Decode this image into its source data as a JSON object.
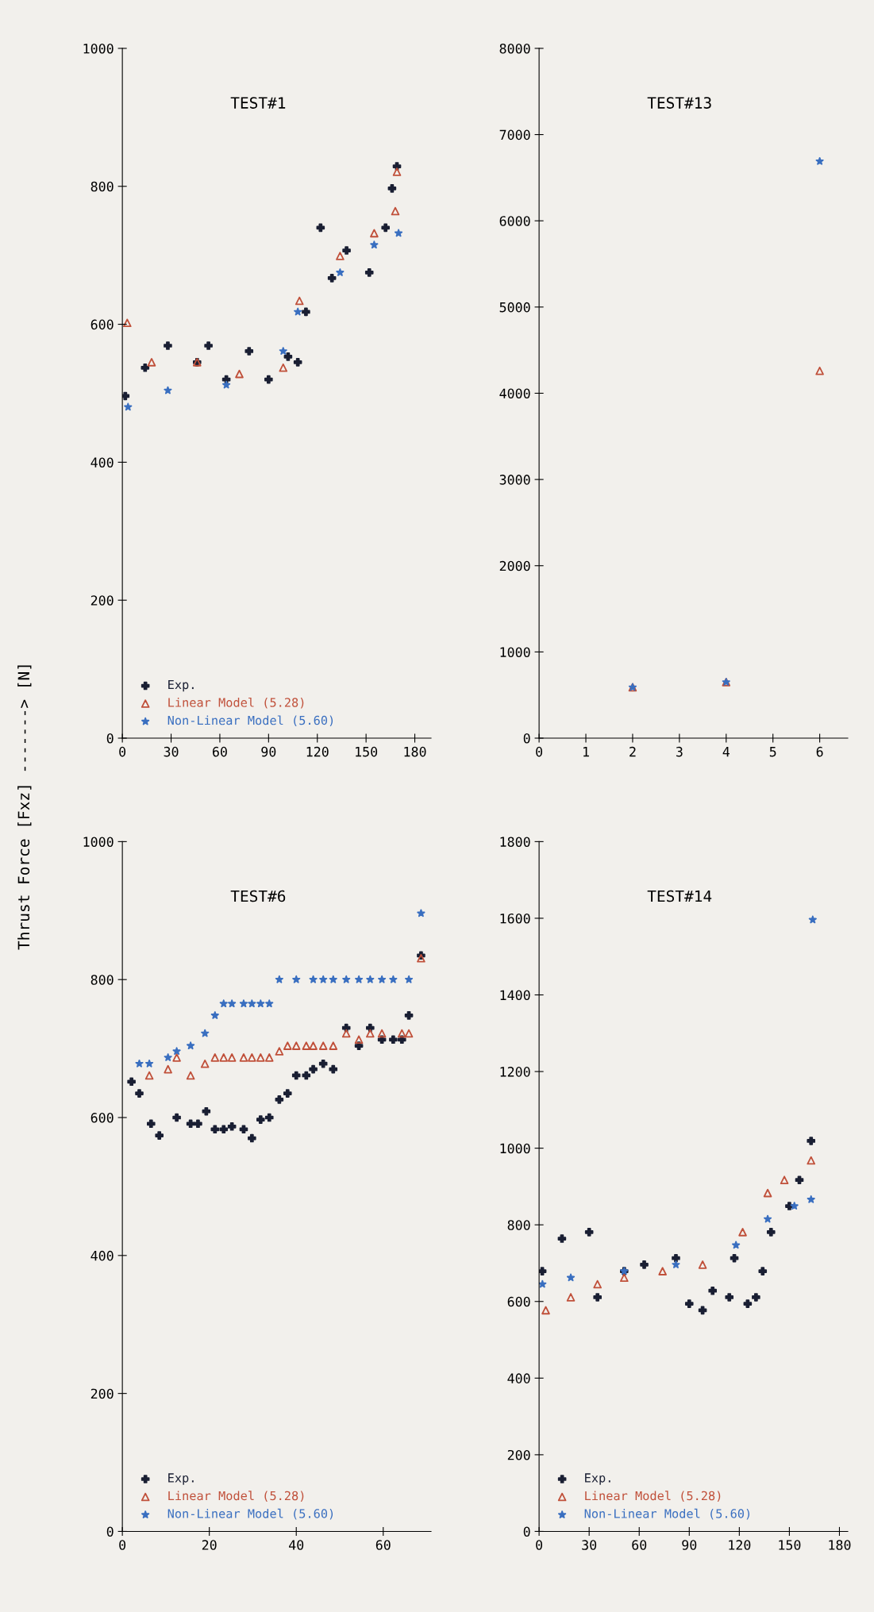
{
  "chart_data": [
    {
      "type": "scatter",
      "title": "TEST#1",
      "ylabel": "Thrust Force [Fxz] -------> [N]",
      "xlim": [
        0,
        190
      ],
      "ylim": [
        0,
        1000
      ],
      "xticks": [
        0,
        30,
        60,
        90,
        120,
        150,
        180
      ],
      "yticks": [
        0,
        200,
        400,
        600,
        800,
        1000
      ],
      "grid": false,
      "legend": "bottom left",
      "series": [
        {
          "name": "Exp.",
          "color": "#1a1f33",
          "marker": "cross",
          "x": [
            1.8,
            14,
            28,
            46,
            53,
            64,
            78,
            90,
            102,
            108,
            113,
            122,
            129,
            138,
            152,
            162,
            166,
            169
          ],
          "values": [
            496,
            537,
            569,
            545,
            569,
            520,
            561,
            520,
            553,
            545,
            618,
            740,
            667,
            707,
            675,
            740,
            797,
            829
          ]
        },
        {
          "name": "Linear Model (5.28)",
          "color": "#c0503a",
          "marker": "triangle",
          "x": [
            3,
            18,
            46,
            72,
            99,
            109,
            134,
            155,
            168,
            169
          ],
          "values": [
            602,
            545,
            545,
            528,
            537,
            634,
            699,
            732,
            764,
            821
          ]
        },
        {
          "name": "Non-Linear Model (5.60)",
          "color": "#3a6fc0",
          "marker": "star",
          "x": [
            3.5,
            28,
            64,
            99,
            108,
            134,
            155,
            170
          ],
          "values": [
            480,
            504,
            512,
            561,
            618,
            675,
            715,
            732
          ]
        }
      ]
    },
    {
      "type": "scatter",
      "title": "TEST#13",
      "xlim": [
        0,
        6.6
      ],
      "ylim": [
        0,
        8000
      ],
      "xticks": [
        0,
        1,
        2,
        3,
        4,
        5,
        6
      ],
      "yticks": [
        0,
        1000,
        2000,
        3000,
        4000,
        5000,
        6000,
        7000,
        8000
      ],
      "grid": false,
      "legend": false,
      "series": [
        {
          "color": "#c0503a",
          "marker": "triangle",
          "x": [
            2,
            4,
            6
          ],
          "values": [
            590,
            650,
            4260
          ]
        },
        {
          "color": "#3a6fc0",
          "marker": "star",
          "x": [
            2,
            4,
            6
          ],
          "values": [
            590,
            650,
            6690
          ]
        }
      ]
    },
    {
      "type": "scatter",
      "title": "TEST#6",
      "xlim": [
        0,
        71
      ],
      "ylim": [
        0,
        1000
      ],
      "xticks": [
        0,
        20,
        40,
        60
      ],
      "yticks": [
        0,
        200,
        400,
        600,
        800,
        1000
      ],
      "grid": false,
      "legend": "bottom left",
      "series": [
        {
          "name": "Exp.",
          "color": "#1a1f33",
          "marker": "cross",
          "x": [
            2.1,
            3.9,
            6.6,
            8.5,
            12.5,
            15.7,
            17.4,
            19.3,
            21.3,
            23.3,
            25.2,
            27.9,
            29.8,
            31.8,
            33.8,
            36.1,
            38,
            40,
            42.3,
            43.9,
            46.2,
            48.5,
            51.5,
            54.4,
            57,
            59.7,
            62.3,
            64.3,
            65.9,
            68.7
          ],
          "values": [
            652,
            635,
            591,
            574,
            600,
            591,
            591,
            609,
            583,
            583,
            587,
            583,
            570,
            597,
            600,
            626,
            635,
            661,
            661,
            670,
            678,
            670,
            730,
            704,
            730,
            713,
            713,
            713,
            748,
            835
          ]
        },
        {
          "name": "Linear Model (5.28)",
          "color": "#c0503a",
          "marker": "triangle",
          "x": [
            6.2,
            10.5,
            12.5,
            15.7,
            19,
            21.3,
            23.3,
            25.2,
            27.9,
            29.8,
            31.8,
            33.8,
            36.1,
            38,
            40,
            42.3,
            43.9,
            46.2,
            48.5,
            51.5,
            54.4,
            57,
            59.7,
            64.3,
            65.9,
            68.7
          ],
          "values": [
            661,
            670,
            687,
            661,
            678,
            687,
            687,
            687,
            687,
            687,
            687,
            687,
            696,
            704,
            704,
            704,
            704,
            704,
            704,
            722,
            713,
            722,
            722,
            722,
            722,
            831
          ]
        },
        {
          "name": "Non-Linear Model (5.60)",
          "color": "#3a6fc0",
          "marker": "star",
          "x": [
            3.9,
            6.2,
            10.5,
            12.5,
            15.7,
            19,
            21.3,
            23.3,
            25.2,
            27.9,
            29.8,
            31.8,
            33.8,
            36.1,
            40,
            43.9,
            46.2,
            48.5,
            51.5,
            54.4,
            57,
            59.7,
            62.3,
            65.9,
            68.7
          ],
          "values": [
            678,
            678,
            687,
            696,
            704,
            722,
            748,
            765,
            765,
            765,
            765,
            765,
            765,
            800,
            800,
            800,
            800,
            800,
            800,
            800,
            800,
            800,
            800,
            800,
            896
          ]
        }
      ]
    },
    {
      "type": "scatter",
      "title": "TEST#14",
      "xlim": [
        0,
        185
      ],
      "ylim": [
        0,
        1800
      ],
      "xticks": [
        0,
        30,
        60,
        90,
        120,
        150,
        180
      ],
      "yticks": [
        0,
        200,
        400,
        600,
        800,
        1000,
        1200,
        1400,
        1600,
        1800
      ],
      "grid": false,
      "legend": "bottom left",
      "series": [
        {
          "name": "Exp.",
          "color": "#1a1f33",
          "marker": "cross",
          "x": [
            1.9,
            13.7,
            30,
            35,
            51,
            63,
            82,
            90,
            98,
            104,
            114,
            117,
            125,
            130,
            134,
            139,
            150,
            156,
            163
          ],
          "values": [
            679,
            764,
            781,
            611,
            679,
            696,
            713,
            594,
            577,
            628,
            611,
            713,
            594,
            611,
            679,
            781,
            849,
            917,
            1019
          ]
        },
        {
          "name": "Linear Model (5.28)",
          "color": "#c0503a",
          "marker": "triangle",
          "x": [
            4,
            19,
            35,
            51,
            74,
            98,
            122,
            137,
            147,
            163
          ],
          "values": [
            577,
            611,
            645,
            662,
            679,
            696,
            781,
            883,
            917,
            968
          ]
        },
        {
          "name": "Non-Linear Model (5.60)",
          "color": "#3a6fc0",
          "marker": "star",
          "x": [
            2,
            19,
            51,
            82,
            118,
            137,
            153,
            163,
            164
          ],
          "values": [
            645,
            662,
            679,
            696,
            747,
            815,
            849,
            866,
            1596
          ]
        }
      ]
    }
  ]
}
